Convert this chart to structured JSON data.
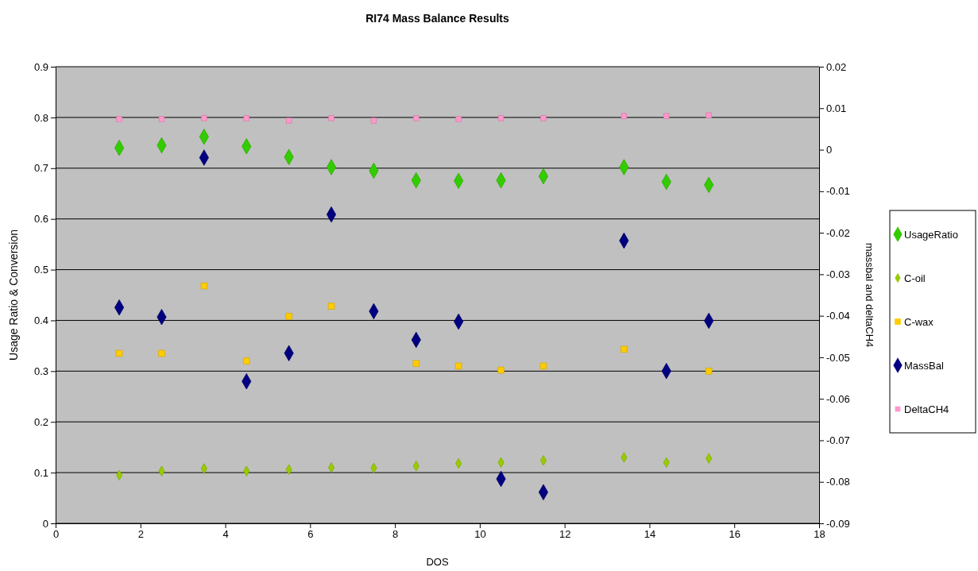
{
  "chart_data": {
    "type": "scatter",
    "title": "RI74 Mass Balance Results",
    "xlabel": "DOS",
    "ylabel": "Usage Ratio & Conversion",
    "y2label": "massbal and deltaCH4",
    "x": [
      1.5,
      2.5,
      3.5,
      4.5,
      5.5,
      6.5,
      7.5,
      8.5,
      9.5,
      10.5,
      11.5,
      13.4,
      14.4,
      15.4
    ],
    "xlim": [
      0,
      18
    ],
    "xticks": [
      0,
      2,
      4,
      6,
      8,
      10,
      12,
      14,
      16,
      18
    ],
    "ylim": [
      0,
      0.9
    ],
    "yticks": [
      0,
      0.1,
      0.2,
      0.3,
      0.4,
      0.5,
      0.6,
      0.7,
      0.8,
      0.9
    ],
    "y2lim": [
      -0.09,
      0.02
    ],
    "y2ticks": [
      -0.09,
      -0.08,
      -0.07,
      -0.06,
      -0.05,
      -0.04,
      -0.03,
      -0.02,
      -0.01,
      0,
      0.01,
      0.02
    ],
    "grid": "y",
    "legend": "right",
    "series": [
      {
        "name": "UsageRatio",
        "color": "#33cc00",
        "marker": "diamond",
        "values": [
          0.74,
          0.745,
          0.762,
          0.743,
          0.722,
          0.702,
          0.695,
          0.676,
          0.675,
          0.676,
          0.684,
          0.702,
          0.673,
          0.667
        ]
      },
      {
        "name": "C-oil",
        "color": "#99cc00",
        "marker": "diamond",
        "values": [
          0.095,
          0.103,
          0.108,
          0.103,
          0.106,
          0.11,
          0.109,
          0.113,
          0.118,
          0.12,
          0.124,
          0.13,
          0.12,
          0.128
        ]
      },
      {
        "name": "C-wax",
        "color": "#ffcc00",
        "marker": "square",
        "values": [
          0.335,
          0.335,
          0.468,
          0.32,
          0.408,
          0.428,
          null,
          0.315,
          0.31,
          0.302,
          0.31,
          0.343,
          null,
          0.3
        ]
      },
      {
        "name": "MassBal",
        "color": "#000080",
        "marker": "diamond",
        "axis": "y2",
        "values": [
          -0.038,
          -0.0403,
          -0.0019,
          -0.0558,
          -0.049,
          -0.0156,
          -0.0389,
          -0.0458,
          -0.0414,
          -0.0793,
          -0.0825,
          -0.0219,
          -0.0533,
          -0.0412
        ]
      },
      {
        "name": "DeltaCH4",
        "color": "#ff99cc",
        "marker": "square",
        "axis": "y2",
        "values": [
          0.0074,
          0.0074,
          0.0076,
          0.0076,
          0.007,
          0.0076,
          0.007,
          0.0076,
          0.0074,
          0.0076,
          0.0076,
          0.0081,
          0.0081,
          0.0083
        ]
      }
    ]
  }
}
